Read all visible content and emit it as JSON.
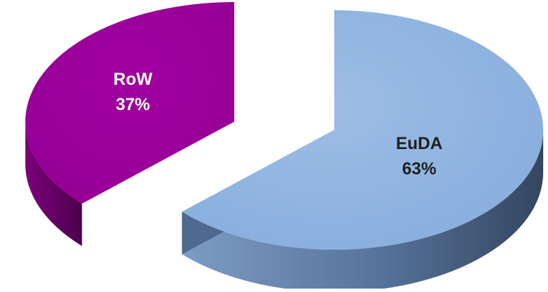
{
  "chart_data": {
    "type": "pie",
    "style": "3d-exploded",
    "title": "",
    "slices": [
      {
        "label": "EuDA",
        "value": 63,
        "value_label": "63%",
        "top_color": "#8db3e2",
        "side_color": "#4f6a8e",
        "label_color": "#1f1f1f"
      },
      {
        "label": "RoW",
        "value": 37,
        "value_label": "37%",
        "top_color": "#990099",
        "side_color": "#5c005c",
        "label_color": "#ffffff"
      }
    ]
  }
}
